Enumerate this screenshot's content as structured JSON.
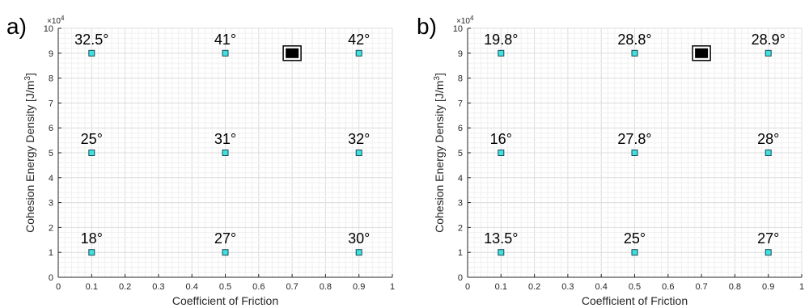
{
  "chart_data": [
    {
      "panel": "a)",
      "type": "scatter",
      "xlabel": "Coefficient of Friction",
      "ylabel": "Cohesion Energy Density [J/m",
      "ylabel_sup": "3",
      "ylabel_close": "]",
      "y_exponent": "×10",
      "y_exponent_sup": "4",
      "xlim": [
        0,
        1
      ],
      "ylim": [
        0,
        10
      ],
      "grid": true,
      "xticks": [
        "0",
        "0.1",
        "0.2",
        "0.3",
        "0.4",
        "0.5",
        "0.6",
        "0.7",
        "0.8",
        "0.9",
        "1"
      ],
      "yticks": [
        "0",
        "1",
        "2",
        "3",
        "4",
        "5",
        "6",
        "7",
        "8",
        "9",
        "10"
      ],
      "marker_color": "#3fe0e0",
      "points": [
        {
          "x": 0.1,
          "y": 9,
          "label": "32.5°"
        },
        {
          "x": 0.5,
          "y": 9,
          "label": "41°"
        },
        {
          "x": 0.9,
          "y": 9,
          "label": "42°"
        },
        {
          "x": 0.1,
          "y": 5,
          "label": "25°"
        },
        {
          "x": 0.5,
          "y": 5,
          "label": "31°"
        },
        {
          "x": 0.9,
          "y": 5,
          "label": "32°"
        },
        {
          "x": 0.1,
          "y": 1,
          "label": "18°"
        },
        {
          "x": 0.5,
          "y": 1,
          "label": "27°"
        },
        {
          "x": 0.9,
          "y": 1,
          "label": "30°"
        }
      ],
      "legend_marker": {
        "x": 0.7,
        "y": 9
      }
    },
    {
      "panel": "b)",
      "type": "scatter",
      "xlabel": "Coefficient of Friction",
      "ylabel": "Cohesion Energy Density [J/m",
      "ylabel_sup": "3",
      "ylabel_close": "]",
      "y_exponent": "×10",
      "y_exponent_sup": "4",
      "xlim": [
        0,
        1
      ],
      "ylim": [
        0,
        10
      ],
      "grid": true,
      "xticks": [
        "0",
        "0.1",
        "0.2",
        "0.3",
        "0.4",
        "0.5",
        "0.6",
        "0.7",
        "0.8",
        "0.9",
        "1"
      ],
      "yticks": [
        "0",
        "1",
        "2",
        "3",
        "4",
        "5",
        "6",
        "7",
        "8",
        "9",
        "10"
      ],
      "marker_color": "#3fe0e0",
      "points": [
        {
          "x": 0.1,
          "y": 9,
          "label": "19.8°"
        },
        {
          "x": 0.5,
          "y": 9,
          "label": "28.8°"
        },
        {
          "x": 0.9,
          "y": 9,
          "label": "28.9°"
        },
        {
          "x": 0.1,
          "y": 5,
          "label": "16°"
        },
        {
          "x": 0.5,
          "y": 5,
          "label": "27.8°"
        },
        {
          "x": 0.9,
          "y": 5,
          "label": "28°"
        },
        {
          "x": 0.1,
          "y": 1,
          "label": "13.5°"
        },
        {
          "x": 0.5,
          "y": 1,
          "label": "25°"
        },
        {
          "x": 0.9,
          "y": 1,
          "label": "27°"
        }
      ],
      "legend_marker": {
        "x": 0.7,
        "y": 9
      }
    }
  ]
}
